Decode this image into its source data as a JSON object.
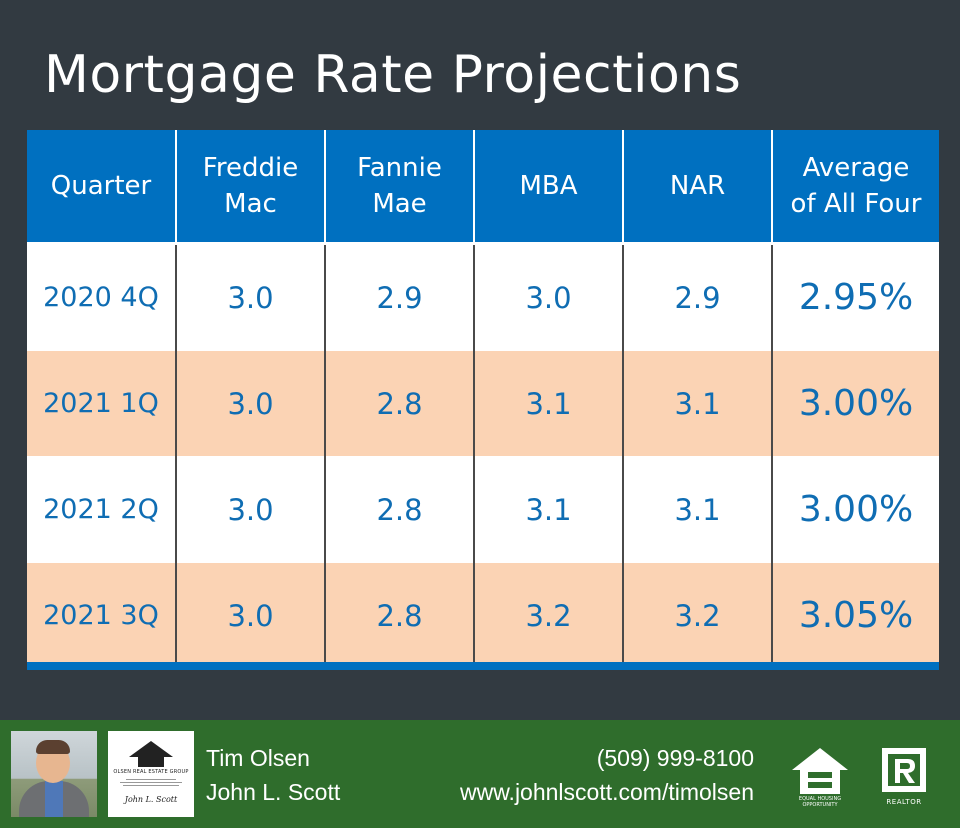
{
  "chart_data": {
    "type": "table",
    "title": "Mortgage Rate Projections",
    "columns": [
      "Quarter",
      "Freddie Mac",
      "Fannie Mae",
      "MBA",
      "NAR",
      "Average of All Four"
    ],
    "column_lines": [
      [
        "Quarter"
      ],
      [
        "Freddie",
        "Mac"
      ],
      [
        "Fannie",
        "Mae"
      ],
      [
        "MBA"
      ],
      [
        "NAR"
      ],
      [
        "Average",
        "of All Four"
      ]
    ],
    "rows": [
      {
        "quarter": "2020 4Q",
        "freddie_mac": "3.0",
        "fannie_mae": "2.9",
        "mba": "3.0",
        "nar": "2.9",
        "average": "2.95%"
      },
      {
        "quarter": "2021 1Q",
        "freddie_mac": "3.0",
        "fannie_mae": "2.8",
        "mba": "3.1",
        "nar": "3.1",
        "average": "3.00%"
      },
      {
        "quarter": "2021 2Q",
        "freddie_mac": "3.0",
        "fannie_mae": "2.8",
        "mba": "3.1",
        "nar": "3.1",
        "average": "3.00%"
      },
      {
        "quarter": "2021 3Q",
        "freddie_mac": "3.0",
        "fannie_mae": "2.8",
        "mba": "3.2",
        "nar": "3.2",
        "average": "3.05%"
      }
    ]
  },
  "colors": {
    "background": "#323a41",
    "header": "#0070c0",
    "value_text": "#0f6db3",
    "band": "#fbd3b4",
    "footer": "#2f6d2c"
  },
  "footer": {
    "name": "Tim Olsen",
    "company": "John L. Scott",
    "phone": "(509) 999-8100",
    "website": "www.johnlscott.com/timolsen",
    "logo_org": "OLSEN REAL ESTATE GROUP",
    "logo_jls": "John L. Scott",
    "eho_label": "EQUAL HOUSING OPPORTUNITY",
    "realtor_label": "REALTOR",
    "icons": [
      "agent-photo",
      "house-logo-icon",
      "equal-housing-icon",
      "realtor-r-icon"
    ]
  }
}
